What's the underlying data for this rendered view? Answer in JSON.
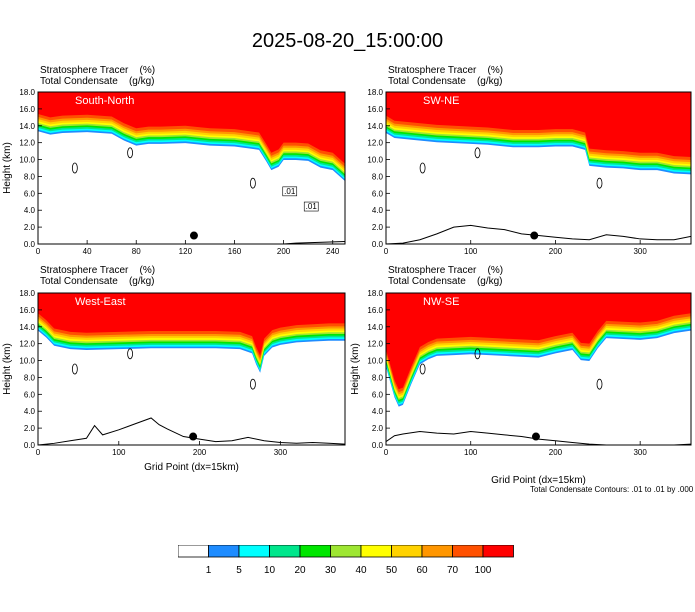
{
  "figure": {
    "title": "2025-08-20_15:00:00",
    "header_lines": [
      "Stratosphere Tracer    (%)",
      "Total Condensate    (g/kg)"
    ],
    "contour_note": "Total Condensate Contours: .01 to .01 by .000",
    "contour_labels": [
      ".01",
      ".01"
    ]
  },
  "colorbar": {
    "levels": [
      "1",
      "5",
      "10",
      "20",
      "30",
      "40",
      "50",
      "60",
      "70",
      "100"
    ],
    "colors": [
      "#ffffff",
      "#1e8cff",
      "#00ffff",
      "#00e68c",
      "#00e600",
      "#9ee632",
      "#ffff00",
      "#ffd200",
      "#ff9600",
      "#ff5000",
      "#ff0000"
    ]
  },
  "chart_data": [
    {
      "type": "heatmap",
      "panel_label": "South-North",
      "ylabel": "Height (km)",
      "xlabel": "",
      "xlim": [
        0,
        250
      ],
      "ylim": [
        0,
        18
      ],
      "xticks": [
        "0",
        "40",
        "80",
        "120",
        "160",
        "200",
        "240"
      ],
      "yticks": [
        "0.0",
        "2.0",
        "4.0",
        "6.0",
        "8.0",
        "10.0",
        "12.0",
        "14.0",
        "16.0",
        "18.0"
      ],
      "tropopause_profile": {
        "x": [
          0,
          10,
          20,
          40,
          60,
          70,
          80,
          90,
          100,
          120,
          140,
          160,
          180,
          186,
          190,
          196,
          200,
          210,
          220,
          230,
          240,
          250
        ],
        "y": [
          15.4,
          15.0,
          15.2,
          15.3,
          15.1,
          14.3,
          13.7,
          13.9,
          13.9,
          14.0,
          13.7,
          13.6,
          13.2,
          11.8,
          10.8,
          11.2,
          12.0,
          12.0,
          11.9,
          11.1,
          10.8,
          9.5
        ]
      },
      "terrain": {
        "x": [
          0,
          150,
          160,
          170,
          200,
          210,
          250
        ],
        "y": [
          0,
          0,
          0,
          0,
          0,
          0.1,
          0.3
        ]
      },
      "marker": {
        "x": 127,
        "y": 1.0
      }
    },
    {
      "type": "heatmap",
      "panel_label": "SW-NE",
      "ylabel": "",
      "xlabel": "",
      "xlim": [
        0,
        360
      ],
      "ylim": [
        0,
        18
      ],
      "xticks": [
        "0",
        "100",
        "200",
        "300"
      ],
      "yticks": [
        "0.0",
        "2.0",
        "4.0",
        "6.0",
        "8.0",
        "10.0",
        "12.0",
        "14.0",
        "16.0",
        "18.0"
      ],
      "tropopause_profile": {
        "x": [
          0,
          10,
          30,
          60,
          100,
          120,
          150,
          180,
          200,
          220,
          235,
          240,
          260,
          280,
          300,
          320,
          340,
          360
        ],
        "y": [
          15.2,
          14.6,
          14.4,
          14.1,
          13.9,
          13.8,
          13.5,
          13.5,
          13.6,
          13.6,
          13.2,
          11.3,
          11.1,
          11.0,
          10.8,
          10.8,
          10.4,
          10.3
        ]
      },
      "terrain": {
        "x": [
          0,
          20,
          40,
          60,
          80,
          100,
          120,
          140,
          160,
          180,
          200,
          220,
          240,
          260,
          280,
          300,
          320,
          340,
          360
        ],
        "y": [
          0,
          0.1,
          0.5,
          1.2,
          2.0,
          2.2,
          1.9,
          1.7,
          1.2,
          1.0,
          0.8,
          0.6,
          0.5,
          1.1,
          0.9,
          0.6,
          0.5,
          0.5,
          0.9
        ]
      },
      "marker": {
        "x": 175,
        "y": 1.0
      }
    },
    {
      "type": "heatmap",
      "panel_label": "West-East",
      "ylabel": "Height (km)",
      "xlabel": "Grid Point (dx=15km)",
      "xlim": [
        0,
        380
      ],
      "ylim": [
        0,
        18
      ],
      "xticks": [
        "0",
        "100",
        "200",
        "300"
      ],
      "yticks": [
        "0.0",
        "2.0",
        "4.0",
        "6.0",
        "8.0",
        "10.0",
        "12.0",
        "14.0",
        "16.0",
        "18.0"
      ],
      "tropopause_profile": {
        "x": [
          0,
          10,
          20,
          40,
          60,
          100,
          140,
          180,
          220,
          250,
          265,
          270,
          275,
          280,
          290,
          300,
          320,
          340,
          360,
          380
        ],
        "y": [
          15.6,
          14.8,
          13.8,
          13.4,
          13.3,
          13.4,
          13.5,
          13.5,
          13.5,
          13.4,
          12.9,
          11.6,
          10.6,
          12.6,
          13.6,
          13.9,
          14.2,
          14.3,
          14.4,
          14.4
        ]
      },
      "terrain": {
        "x": [
          0,
          20,
          40,
          60,
          70,
          80,
          100,
          120,
          140,
          150,
          160,
          180,
          200,
          220,
          240,
          260,
          280,
          300,
          320,
          340,
          360,
          380
        ],
        "y": [
          0,
          0.2,
          0.5,
          0.8,
          2.3,
          1.2,
          1.8,
          2.5,
          3.2,
          2.4,
          1.9,
          1.0,
          0.7,
          0.4,
          0.5,
          0.9,
          0.5,
          0.3,
          0.2,
          0.3,
          0.2,
          0.1
        ]
      },
      "marker": {
        "x": 192,
        "y": 1.0
      }
    },
    {
      "type": "heatmap",
      "panel_label": "NW-SE",
      "ylabel": "Height (km)",
      "xlabel": "Grid Point (dx=15km)",
      "xlim": [
        0,
        360
      ],
      "ylim": [
        0,
        18
      ],
      "xticks": [
        "0",
        "100",
        "200",
        "300"
      ],
      "yticks": [
        "0.0",
        "2.0",
        "4.0",
        "6.0",
        "8.0",
        "10.0",
        "12.0",
        "14.0",
        "16.0",
        "18.0"
      ],
      "tropopause_profile": {
        "x": [
          0,
          5,
          10,
          15,
          20,
          30,
          40,
          50,
          60,
          80,
          100,
          140,
          180,
          200,
          220,
          230,
          240,
          250,
          260,
          280,
          300,
          320,
          340,
          360
        ],
        "y": [
          11.3,
          9.5,
          7.7,
          6.6,
          6.8,
          9.3,
          11.6,
          12.2,
          12.6,
          12.7,
          12.8,
          12.6,
          12.4,
          12.9,
          13.3,
          12.1,
          12.0,
          13.5,
          14.7,
          14.6,
          14.5,
          14.7,
          15.3,
          15.6
        ]
      },
      "terrain": {
        "x": [
          0,
          10,
          20,
          40,
          60,
          80,
          100,
          120,
          140,
          160,
          180,
          200,
          220,
          240,
          260,
          280,
          300,
          320,
          340,
          360
        ],
        "y": [
          0.4,
          1.1,
          1.3,
          1.6,
          1.4,
          1.3,
          1.6,
          1.4,
          1.2,
          1.0,
          0.7,
          0.5,
          0.3,
          0.1,
          0,
          0,
          0,
          0,
          0,
          0.1
        ]
      },
      "marker": {
        "x": 177,
        "y": 1.0
      }
    }
  ]
}
